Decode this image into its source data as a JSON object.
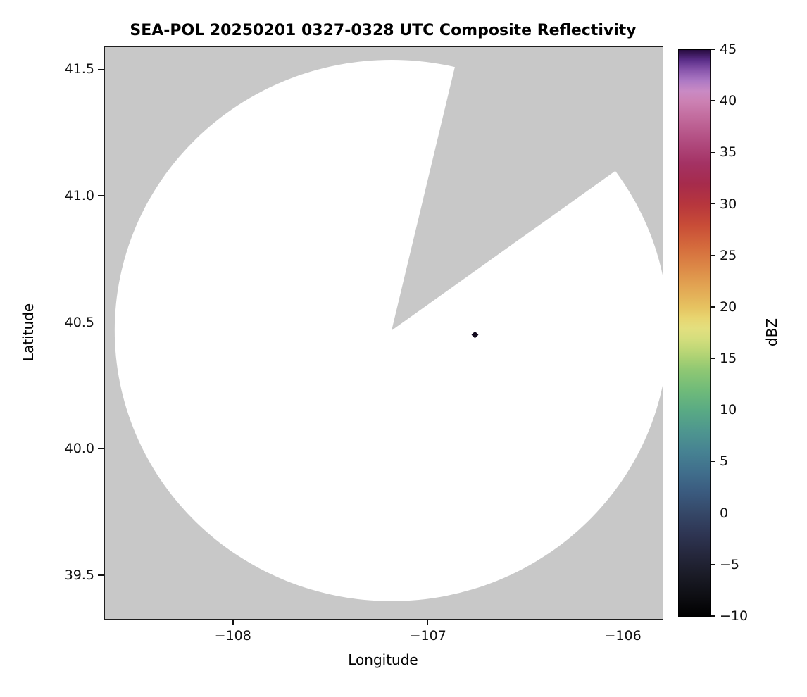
{
  "chart_data": {
    "type": "heatmap",
    "title": "SEA-POL 20250201 0327-0328 UTC Composite Reflectivity",
    "xlabel": "Longitude",
    "ylabel": "Latitude",
    "xlim": [
      -108.66,
      -105.8
    ],
    "ylim": [
      39.33,
      41.59
    ],
    "xticks": {
      "values": [
        -108,
        -107,
        -106
      ],
      "labels": [
        "−108",
        "−107",
        "−106"
      ]
    },
    "yticks": {
      "values": [
        39.5,
        40.0,
        40.5,
        41.0,
        41.5
      ],
      "labels": [
        "39.5",
        "40.0",
        "40.5",
        "41.0",
        "41.5"
      ]
    },
    "grid": false,
    "nodata_color": "#c8c8c8",
    "coverage_color": "#ffffff",
    "radar": {
      "center_lon": -107.19,
      "center_lat": 40.47,
      "range_lon_deg": 1.42,
      "range_lat_deg": 1.07,
      "blocked_sector_azimuth_deg": [
        13.5,
        54.5
      ],
      "description": "White disk = radar coverage area with no echoes above display minimum; gray = no data (outside maximum range and in the blocked azimuth sector to the north-northeast)"
    },
    "echoes": [
      {
        "lon": -106.76,
        "lat": 40.45,
        "value_dbz_estimate": -8,
        "appearance": "single isolated very dark pixel (near the dark end of the colormap)",
        "color": "#120a1e"
      }
    ],
    "colorbar": {
      "label": "dBZ",
      "min": -10,
      "max": 45,
      "tick_values": [
        45,
        40,
        35,
        30,
        25,
        20,
        15,
        10,
        5,
        0,
        -5,
        -10
      ],
      "tick_labels": [
        "45",
        "40",
        "35",
        "30",
        "25",
        "20",
        "15",
        "10",
        "5",
        "0",
        "−5",
        "−10"
      ],
      "stops": [
        [
          -10,
          "#000000"
        ],
        [
          -8,
          "#0e0e13"
        ],
        [
          -6,
          "#1a1b26"
        ],
        [
          -4,
          "#25273c"
        ],
        [
          -2,
          "#2e3553"
        ],
        [
          0,
          "#354767"
        ],
        [
          2,
          "#3a5a7e"
        ],
        [
          4,
          "#406e8c"
        ],
        [
          6,
          "#468292"
        ],
        [
          8,
          "#4e968f"
        ],
        [
          10,
          "#59aa84"
        ],
        [
          12,
          "#70bb79"
        ],
        [
          14,
          "#90c873"
        ],
        [
          15,
          "#a8d073"
        ],
        [
          16,
          "#c0d877"
        ],
        [
          17,
          "#d5de7d"
        ],
        [
          18,
          "#e3df7e"
        ],
        [
          19,
          "#e8d570"
        ],
        [
          20,
          "#e6c361"
        ],
        [
          22,
          "#e2a553"
        ],
        [
          24,
          "#dc8746"
        ],
        [
          26,
          "#d4693c"
        ],
        [
          28,
          "#c84c37"
        ],
        [
          30,
          "#b7363d"
        ],
        [
          32,
          "#a62b4c"
        ],
        [
          34,
          "#a43264"
        ],
        [
          36,
          "#b04a7e"
        ],
        [
          38,
          "#bf6597"
        ],
        [
          40,
          "#cc81b3"
        ],
        [
          41,
          "#c98ac4"
        ],
        [
          42,
          "#ad79c4"
        ],
        [
          43,
          "#8a57ad"
        ],
        [
          44,
          "#5c2f8a"
        ],
        [
          45,
          "#270b3f"
        ]
      ]
    }
  }
}
